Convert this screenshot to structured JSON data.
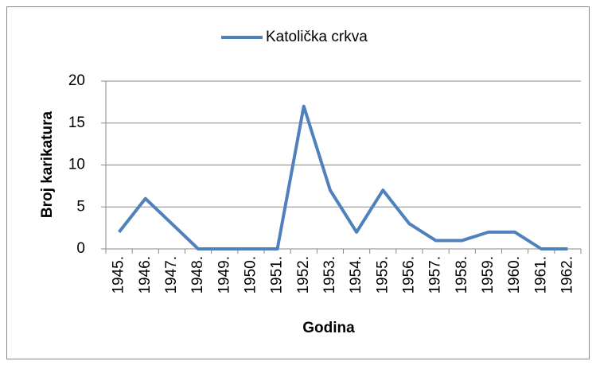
{
  "chart_data": {
    "type": "line",
    "categories": [
      "1945.",
      "1946.",
      "1947.",
      "1948.",
      "1949.",
      "1950.",
      "1951.",
      "1952.",
      "1953.",
      "1954.",
      "1955.",
      "1956.",
      "1957.",
      "1958.",
      "1959.",
      "1960.",
      "1961.",
      "1962."
    ],
    "series": [
      {
        "name": "Katolička crkva",
        "color": "#4f81bd",
        "values": [
          2,
          6,
          3,
          0,
          0,
          0,
          0,
          17,
          7,
          2,
          7,
          3,
          1,
          1,
          2,
          2,
          0,
          0
        ]
      }
    ],
    "x_label": "Godina",
    "y_label": "Broj karikatura",
    "ylim": [
      0,
      20
    ],
    "yticks": [
      0,
      5,
      10,
      15,
      20
    ],
    "grid": true,
    "legend": "top"
  }
}
